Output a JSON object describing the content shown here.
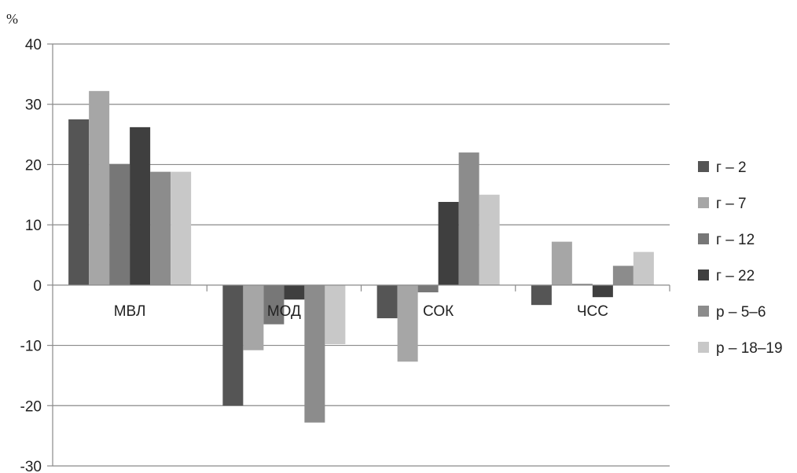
{
  "chart_data": {
    "type": "bar",
    "ylabel": "%",
    "ylim": [
      -30,
      40
    ],
    "yticks": [
      40,
      30,
      20,
      10,
      0,
      -10,
      -20,
      -30
    ],
    "grid": true,
    "legend_position": "right",
    "categories": [
      "МВЛ",
      "МОД",
      "СОК",
      "ЧСС"
    ],
    "series": [
      {
        "name": "г – 2",
        "color": "#555555",
        "values": [
          27.5,
          -20.0,
          -5.5,
          -3.3
        ]
      },
      {
        "name": "г – 7",
        "color": "#a6a6a6",
        "values": [
          32.2,
          -10.8,
          -12.7,
          7.2
        ]
      },
      {
        "name": "г – 12",
        "color": "#777777",
        "values": [
          20.1,
          -6.5,
          -1.2,
          0.2
        ]
      },
      {
        "name": "г – 22",
        "color": "#3f3f3f",
        "values": [
          26.2,
          -2.4,
          13.8,
          -2.0
        ]
      },
      {
        "name": "р – 5–6",
        "color": "#8c8c8c",
        "values": [
          18.8,
          -22.8,
          22.0,
          3.2
        ]
      },
      {
        "name": "р – 18–19",
        "color": "#c8c8c8",
        "values": [
          18.8,
          -9.8,
          15.0,
          5.5
        ]
      }
    ]
  }
}
